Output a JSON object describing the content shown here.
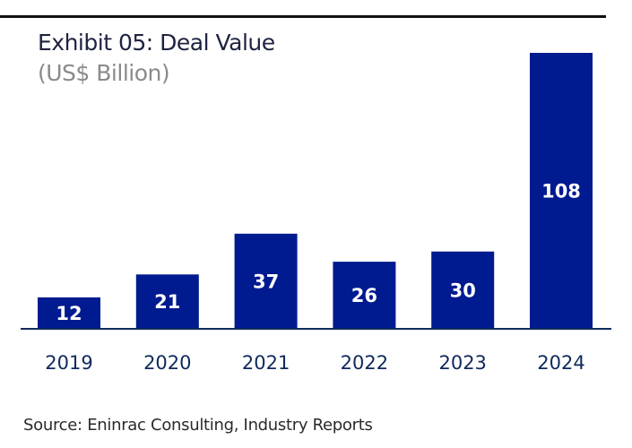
{
  "chart_data": {
    "type": "bar",
    "title": "Exhibit 05: Deal Value",
    "subtitle": "(US$ Billion)",
    "xlabel": "",
    "ylabel": "",
    "categories": [
      "2019",
      "2020",
      "2021",
      "2022",
      "2023",
      "2024"
    ],
    "values": [
      12,
      21,
      37,
      26,
      30,
      108
    ],
    "ylim": [
      0,
      108
    ],
    "grid": false,
    "legend": "none",
    "bar_color": "#001a8f",
    "baseline_color": "#0f2a5c",
    "data_labels": true,
    "source": "Source: Eninrac Consulting, Industry Reports"
  }
}
